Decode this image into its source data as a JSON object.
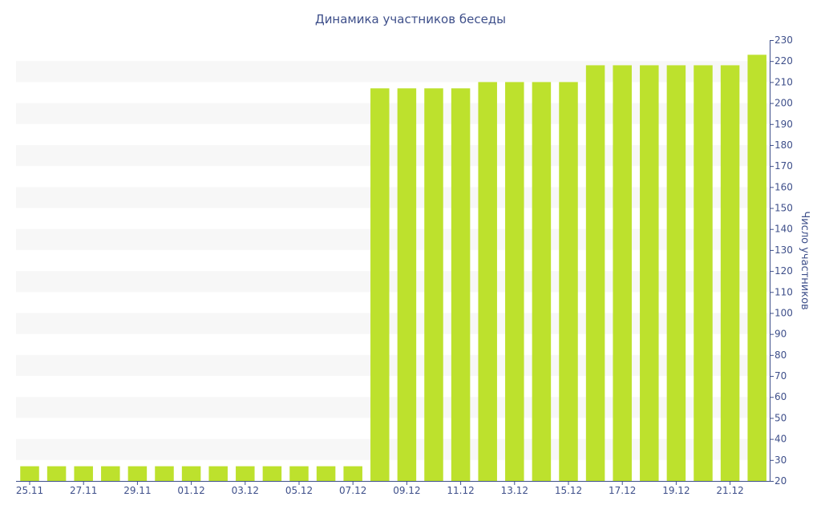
{
  "chart_data": {
    "type": "bar",
    "title": "Динамика участников беседы",
    "ylabel": "Число участников",
    "xlabel": "",
    "categories": [
      "25.11",
      "26.11",
      "27.11",
      "28.11",
      "29.11",
      "30.11",
      "01.12",
      "02.12",
      "03.12",
      "04.12",
      "05.12",
      "06.12",
      "07.12",
      "08.12",
      "09.12",
      "10.12",
      "11.12",
      "12.12",
      "13.12",
      "14.12",
      "15.12",
      "16.12",
      "17.12",
      "18.12",
      "19.12",
      "20.12",
      "21.12",
      "22.12"
    ],
    "tick_categories": [
      "25.11",
      "27.11",
      "29.11",
      "01.12",
      "03.12",
      "05.12",
      "07.12",
      "09.12",
      "11.12",
      "13.12",
      "15.12",
      "17.12",
      "19.12",
      "21.12"
    ],
    "values": [
      27,
      27,
      27,
      27,
      27,
      27,
      27,
      27,
      27,
      27,
      27,
      27,
      27,
      207,
      207,
      207,
      207,
      210,
      210,
      210,
      210,
      218,
      218,
      218,
      218,
      218,
      218,
      223
    ],
    "ylim": [
      20,
      230
    ],
    "yticks": [
      20,
      30,
      40,
      50,
      60,
      70,
      80,
      90,
      100,
      110,
      120,
      130,
      140,
      150,
      160,
      170,
      180,
      190,
      200,
      210,
      220,
      230
    ],
    "y_axis_position": "right",
    "grid": "alternating horizontal bands",
    "legend": "none",
    "colors": {
      "bar": "#bde12d",
      "text": "#3e4f8a",
      "band": "#f7f7f7"
    }
  }
}
